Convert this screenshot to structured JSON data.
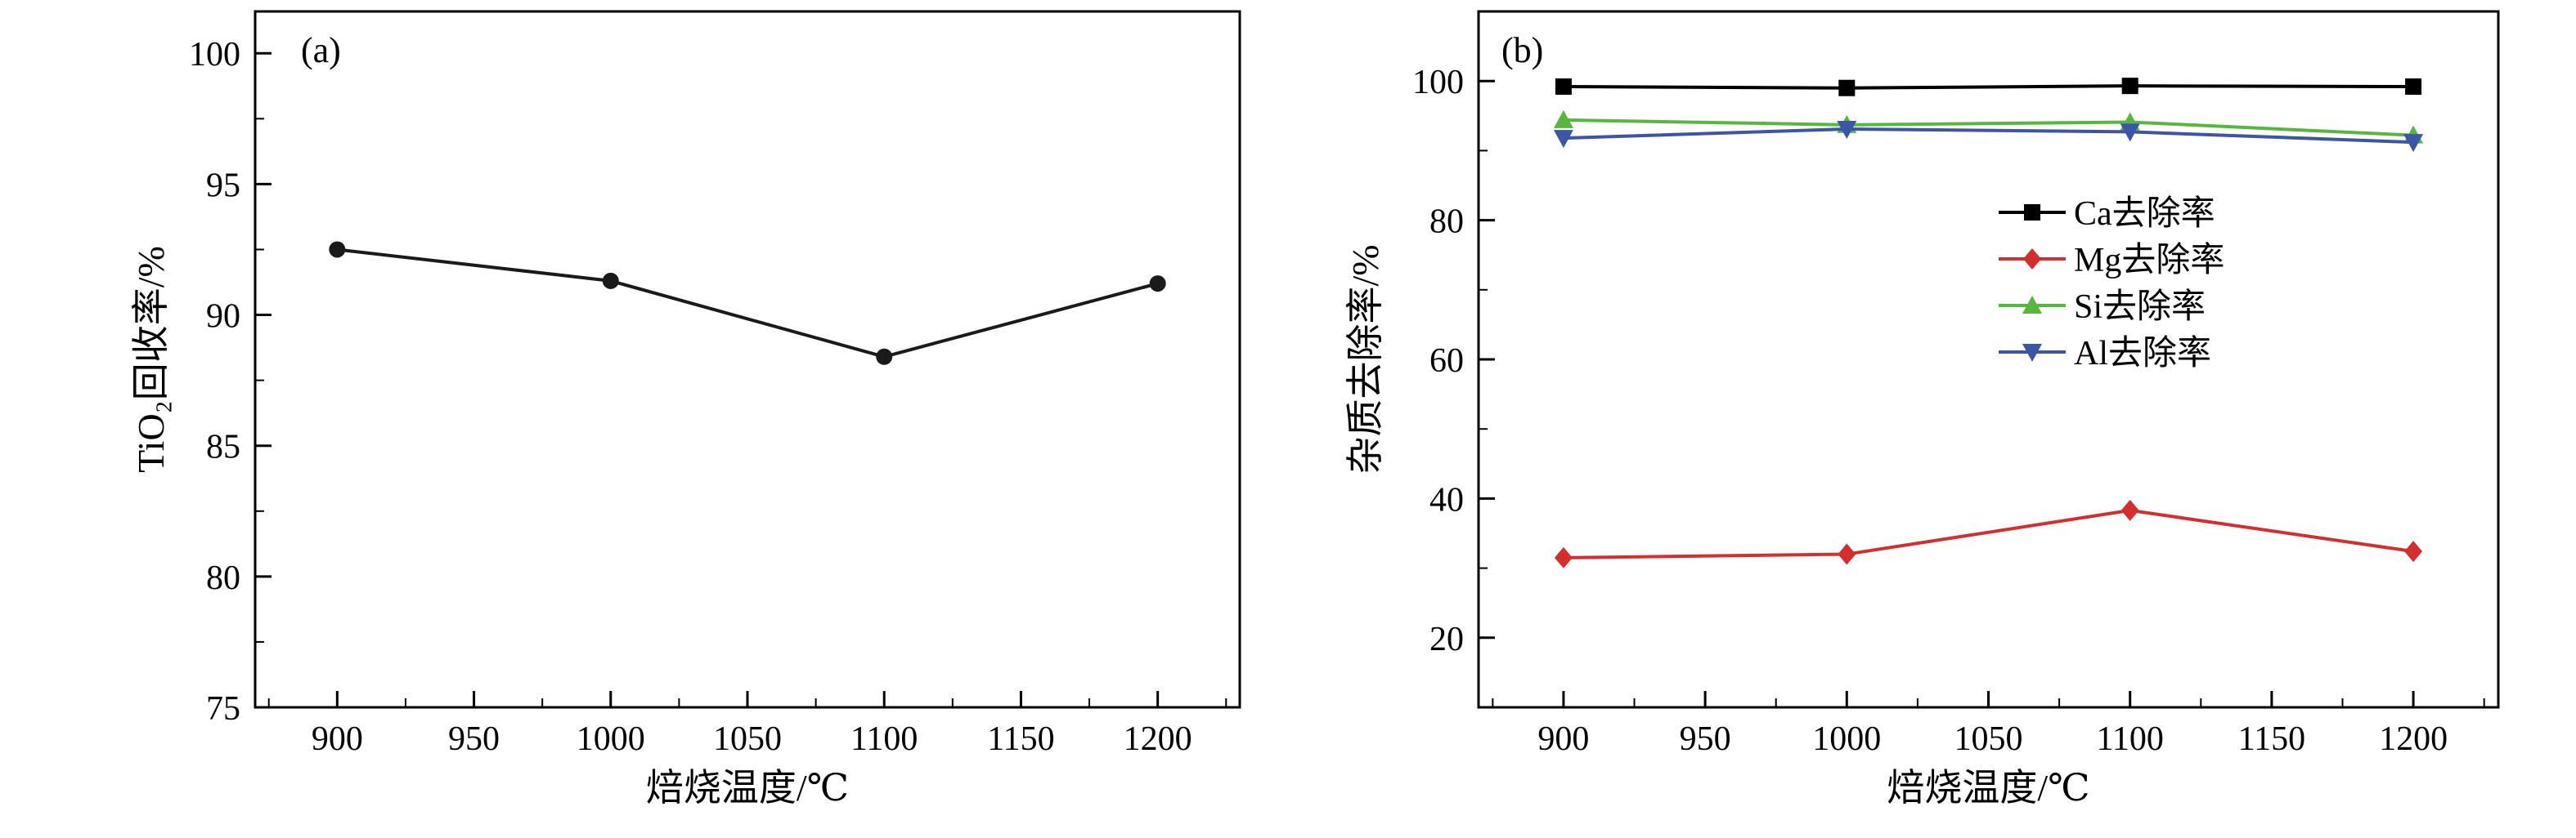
{
  "figure": {
    "background": "#ffffff",
    "text_color": "#000000",
    "axis_color": "#000000"
  },
  "chart_data": [
    {
      "type": "line",
      "panel_label": "(a)",
      "title": "",
      "xlabel": "焙烧温度/℃",
      "ylabel": "TiO₂回收率/%",
      "xlim": [
        870,
        1230
      ],
      "ylim": [
        75,
        101.6
      ],
      "xticks": [
        900,
        950,
        1000,
        1050,
        1100,
        1150,
        1200
      ],
      "yticks": [
        75,
        80,
        85,
        90,
        95,
        100
      ],
      "grid": false,
      "legend": null,
      "series": [
        {
          "name": "TiO2回收率",
          "color": "#1a1a1a",
          "marker": "circle",
          "x": [
            900,
            1000,
            1100,
            1200
          ],
          "y": [
            92.5,
            91.3,
            88.4,
            91.2
          ]
        }
      ]
    },
    {
      "type": "line",
      "panel_label": "(b)",
      "title": "",
      "xlabel": "焙烧温度/℃",
      "ylabel": "杂质去除率/%",
      "xlim": [
        870,
        1230
      ],
      "ylim": [
        10,
        110
      ],
      "xticks": [
        900,
        950,
        1000,
        1050,
        1100,
        1150,
        1200
      ],
      "yticks": [
        20,
        40,
        60,
        80,
        100
      ],
      "grid": false,
      "legend": {
        "position": "middle-right",
        "entries": [
          "Ca去除率",
          "Mg去除率",
          "Si去除率",
          "Al去除率"
        ]
      },
      "series": [
        {
          "name": "Ca去除率",
          "color": "#000000",
          "marker": "square",
          "x": [
            900,
            1000,
            1100,
            1200
          ],
          "y": [
            99.2,
            99.0,
            99.3,
            99.2
          ]
        },
        {
          "name": "Mg去除率",
          "color": "#d42f2f",
          "marker": "diamond",
          "x": [
            900,
            1000,
            1100,
            1200
          ],
          "y": [
            31.5,
            32.0,
            38.3,
            32.4
          ]
        },
        {
          "name": "Si去除率",
          "color": "#57b63e",
          "marker": "triangle-up",
          "x": [
            900,
            1000,
            1100,
            1200
          ],
          "y": [
            94.4,
            93.7,
            94.1,
            92.2
          ]
        },
        {
          "name": "Al去除率",
          "color": "#3c55a5",
          "marker": "triangle-down",
          "x": [
            900,
            1000,
            1100,
            1200
          ],
          "y": [
            91.8,
            93.1,
            92.7,
            91.2
          ]
        }
      ]
    }
  ]
}
